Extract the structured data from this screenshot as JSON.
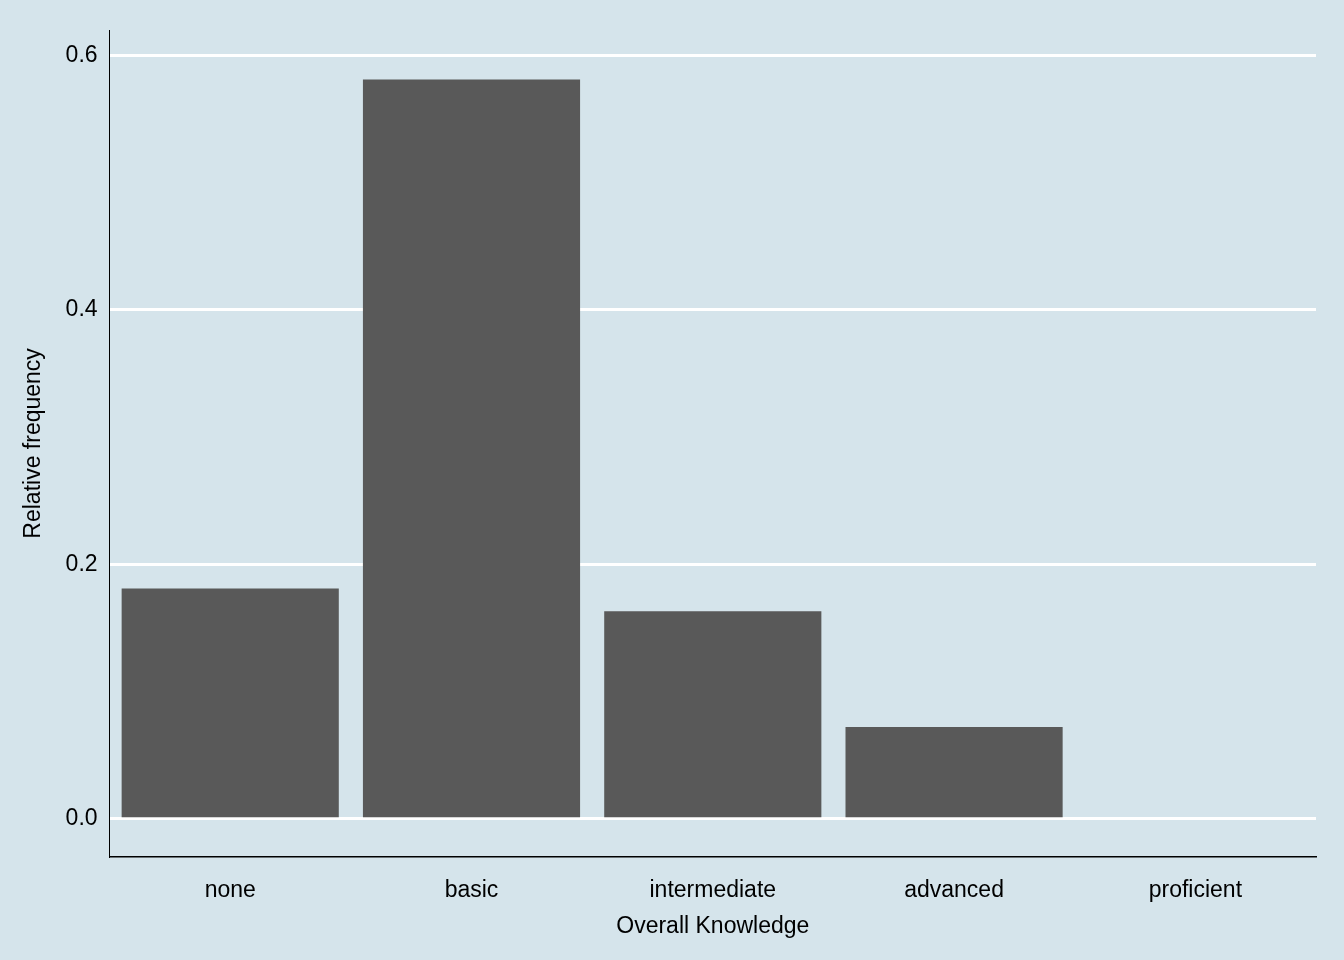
{
  "chart_data": {
    "type": "bar",
    "categories": [
      "none",
      "basic",
      "intermediate",
      "advanced",
      "proficient"
    ],
    "values": [
      0.181,
      0.581,
      0.163,
      0.072,
      0
    ],
    "color": "#595959",
    "xlabel": "Overall Knowledge",
    "ylabel": "Relative frequency",
    "ylim": [
      -0.03,
      0.62
    ],
    "yticks": [
      {
        "value": 0,
        "label": "0.0"
      },
      0.2,
      0.4,
      0.6
    ],
    "grid": true
  }
}
